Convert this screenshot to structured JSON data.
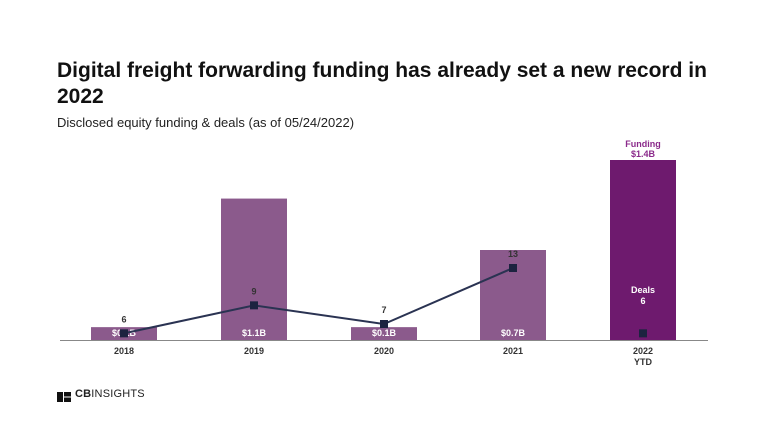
{
  "header": {
    "title": "Digital freight forwarding funding has already set a new record in 2022",
    "subtitle": "Disclosed equity funding & deals (as of 05/24/2022)"
  },
  "brand": {
    "logo_bold": "CB",
    "logo_rest": "INSIGHTS"
  },
  "chart_data": {
    "type": "bar",
    "categories": [
      "2018",
      "2019",
      "2020",
      "2021",
      "2022\nYTD"
    ],
    "series": [
      {
        "name": "Funding",
        "kind": "bar",
        "values": [
          0.1,
          1.1,
          0.1,
          0.7,
          1.4
        ],
        "labels": [
          "$0.1B",
          "$1.1B",
          "$0.1B",
          "$0.7B",
          "$1.4B"
        ],
        "colors": [
          "#8b5a8c",
          "#8b5a8c",
          "#8b5a8c",
          "#8b5a8c",
          "#6e1a6e"
        ]
      },
      {
        "name": "Deals",
        "kind": "line",
        "values": [
          6,
          9,
          7,
          13,
          6
        ],
        "labels": [
          "6",
          "9",
          "7",
          "13",
          "6"
        ],
        "color": "#2a3352"
      }
    ],
    "callout_funding": "Funding",
    "callout_funding_value": "$1.4B",
    "callout_deals": "Deals",
    "callout_deals_value": "6",
    "funding_ylim": [
      0,
      1.4
    ],
    "grid": false,
    "legend": "none"
  }
}
